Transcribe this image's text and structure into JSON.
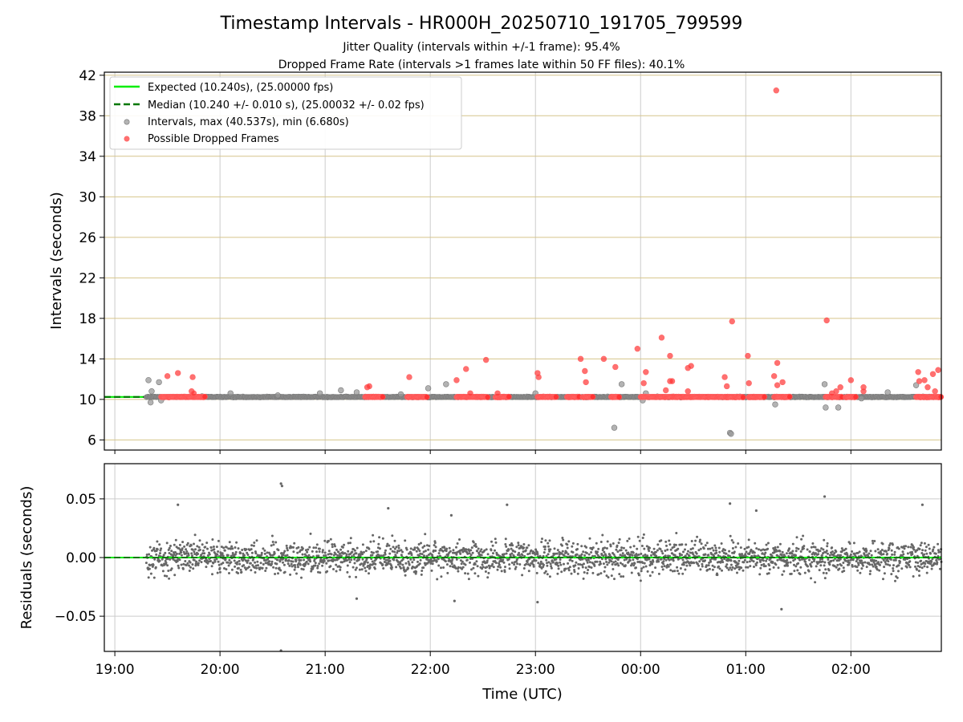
{
  "chart_data": [
    {
      "type": "scatter",
      "title": "Timestamp Intervals - HR000H_20250710_191705_799599",
      "subtitle_lines": [
        "Jitter Quality (intervals within +/-1 frame): 95.4%",
        "Dropped Frame Rate (intervals >1 frames late within 50 FF files): 40.1%"
      ],
      "xlabel": "",
      "ylabel": "Intervals (seconds)",
      "x_range_hours": [
        18.9,
        26.86
      ],
      "ylim": [
        5,
        42.3
      ],
      "y_ticks": [
        6,
        10,
        14,
        18,
        22,
        26,
        30,
        34,
        38,
        42
      ],
      "grid": "horizontal lines (golden) and vertical lines at hour ticks",
      "legend_position": "top-left",
      "legend": [
        "Expected (10.240s), (25.00000 fps)",
        "Median (10.240 +/- 0.010 s), (25.00032 +/- 0.02 fps)",
        "Intervals, max (40.537s), min (6.680s)",
        "Possible Dropped Frames"
      ],
      "colors": {
        "expected": "#00ee00",
        "median": "#007700",
        "intervals": "#999999",
        "dropped": "#ff3333",
        "grid_h": "#d6c48a",
        "grid_v": "#cccccc"
      },
      "series": [
        {
          "name": "Expected (10.240s), (25.00000 fps)",
          "kind": "hline",
          "y": 10.24
        },
        {
          "name": "Median (10.240 +/- 0.010 s), (25.00032 +/- 0.02 fps)",
          "kind": "hline-dashed",
          "y": 10.24
        },
        {
          "name": "Intervals, max (40.537s), min (6.680s)",
          "kind": "scatter",
          "note": "about 2500 points near 10.24 s spanning 19:18 to 02:52",
          "x_start_hours": 19.3,
          "x_end_hours": 26.86,
          "baseline": 10.24,
          "outliers": [
            [
              19.32,
              11.9
            ],
            [
              19.34,
              9.7
            ],
            [
              19.35,
              10.8
            ],
            [
              19.42,
              11.7
            ],
            [
              19.44,
              9.9
            ],
            [
              19.83,
              10.3
            ],
            [
              20.1,
              10.6
            ],
            [
              20.55,
              10.4
            ],
            [
              20.95,
              10.6
            ],
            [
              21.15,
              10.9
            ],
            [
              21.3,
              10.7
            ],
            [
              21.72,
              10.5
            ],
            [
              21.98,
              11.1
            ],
            [
              22.15,
              11.5
            ],
            [
              23.0,
              10.6
            ],
            [
              23.75,
              7.2
            ],
            [
              23.82,
              11.5
            ],
            [
              24.05,
              10.6
            ],
            [
              24.02,
              9.9
            ],
            [
              24.85,
              6.7
            ],
            [
              24.86,
              6.6
            ],
            [
              25.28,
              9.5
            ],
            [
              25.75,
              11.5
            ],
            [
              25.76,
              9.2
            ],
            [
              25.88,
              9.2
            ],
            [
              26.1,
              10.1
            ],
            [
              26.35,
              10.7
            ],
            [
              26.62,
              11.4
            ]
          ]
        },
        {
          "name": "Possible Dropped Frames",
          "kind": "scatter",
          "dense_runs_hours": [
            [
              19.44,
              19.86
            ],
            [
              21.38,
              21.55
            ],
            [
              21.78,
              21.97
            ],
            [
              22.25,
              22.55
            ],
            [
              22.62,
              22.75
            ],
            [
              23.02,
              23.2
            ],
            [
              23.3,
              23.42
            ],
            [
              23.45,
              23.55
            ],
            [
              23.72,
              23.8
            ],
            [
              24.0,
              24.83
            ],
            [
              24.8,
              24.98
            ],
            [
              25.03,
              25.18
            ],
            [
              25.27,
              25.42
            ],
            [
              25.76,
              25.92
            ],
            [
              25.95,
              26.05
            ],
            [
              26.62,
              26.86
            ]
          ],
          "run_y": 10.24,
          "outliers": [
            [
              19.5,
              12.3
            ],
            [
              19.6,
              12.6
            ],
            [
              19.74,
              12.2
            ],
            [
              19.73,
              10.8
            ],
            [
              19.75,
              10.6
            ],
            [
              21.4,
              11.2
            ],
            [
              21.42,
              11.3
            ],
            [
              21.8,
              12.2
            ],
            [
              22.25,
              11.9
            ],
            [
              22.34,
              13.0
            ],
            [
              22.38,
              10.6
            ],
            [
              22.53,
              13.9
            ],
            [
              22.64,
              10.6
            ],
            [
              23.02,
              12.6
            ],
            [
              23.03,
              12.2
            ],
            [
              23.43,
              14.0
            ],
            [
              23.47,
              12.8
            ],
            [
              23.48,
              11.7
            ],
            [
              23.65,
              14.0
            ],
            [
              23.76,
              13.2
            ],
            [
              23.97,
              15.0
            ],
            [
              24.03,
              11.6
            ],
            [
              24.05,
              12.7
            ],
            [
              24.2,
              16.1
            ],
            [
              24.24,
              10.9
            ],
            [
              24.28,
              14.3
            ],
            [
              24.28,
              11.8
            ],
            [
              24.3,
              11.8
            ],
            [
              24.45,
              13.1
            ],
            [
              24.48,
              13.3
            ],
            [
              24.45,
              10.8
            ],
            [
              24.8,
              12.2
            ],
            [
              24.82,
              11.3
            ],
            [
              24.87,
              17.7
            ],
            [
              25.02,
              14.3
            ],
            [
              25.03,
              11.6
            ],
            [
              25.27,
              12.3
            ],
            [
              25.3,
              13.6
            ],
            [
              25.3,
              11.4
            ],
            [
              25.35,
              11.7
            ],
            [
              25.29,
              40.5
            ],
            [
              25.77,
              17.8
            ],
            [
              25.82,
              10.6
            ],
            [
              25.86,
              10.8
            ],
            [
              25.9,
              11.2
            ],
            [
              26.0,
              11.9
            ],
            [
              26.12,
              11.2
            ],
            [
              26.12,
              10.8
            ],
            [
              26.64,
              12.7
            ],
            [
              26.65,
              11.8
            ],
            [
              26.7,
              11.9
            ],
            [
              26.73,
              11.2
            ],
            [
              26.78,
              12.5
            ],
            [
              26.83,
              12.9
            ],
            [
              26.8,
              10.8
            ]
          ]
        }
      ]
    },
    {
      "type": "scatter",
      "title": "",
      "xlabel": "Time (UTC)",
      "ylabel": "Residuals (seconds)",
      "x_range_hours": [
        18.9,
        26.86
      ],
      "ylim": [
        -0.08,
        0.08
      ],
      "y_ticks": [
        -0.05,
        0.0,
        0.05
      ],
      "y_tick_labels": [
        "−0.05",
        "0.00",
        "0.05"
      ],
      "x_ticks_hours": [
        19,
        20,
        21,
        22,
        23,
        24,
        25,
        26
      ],
      "x_tick_labels": [
        "19:00",
        "20:00",
        "21:00",
        "22:00",
        "23:00",
        "00:00",
        "01:00",
        "02:00"
      ],
      "grid": "on",
      "series": [
        {
          "name": "",
          "kind": "scatter",
          "note": "about 2500 residual points roughly normal with sd about 0.010 s",
          "x_start_hours": 19.3,
          "x_end_hours": 26.86,
          "sd": 0.01,
          "count": 2500,
          "outliers": [
            [
              19.6,
              0.045
            ],
            [
              20.58,
              0.063
            ],
            [
              20.59,
              0.061
            ],
            [
              20.58,
              -0.08
            ],
            [
              21.6,
              0.042
            ],
            [
              22.2,
              0.036
            ],
            [
              22.73,
              0.045
            ],
            [
              24.85,
              0.046
            ],
            [
              25.1,
              0.04
            ],
            [
              25.75,
              0.052
            ],
            [
              26.68,
              0.045
            ],
            [
              25.34,
              -0.044
            ],
            [
              21.3,
              -0.035
            ],
            [
              22.23,
              -0.037
            ],
            [
              23.02,
              -0.038
            ]
          ]
        },
        {
          "name": "",
          "kind": "hline",
          "y": 0.0
        }
      ]
    }
  ]
}
